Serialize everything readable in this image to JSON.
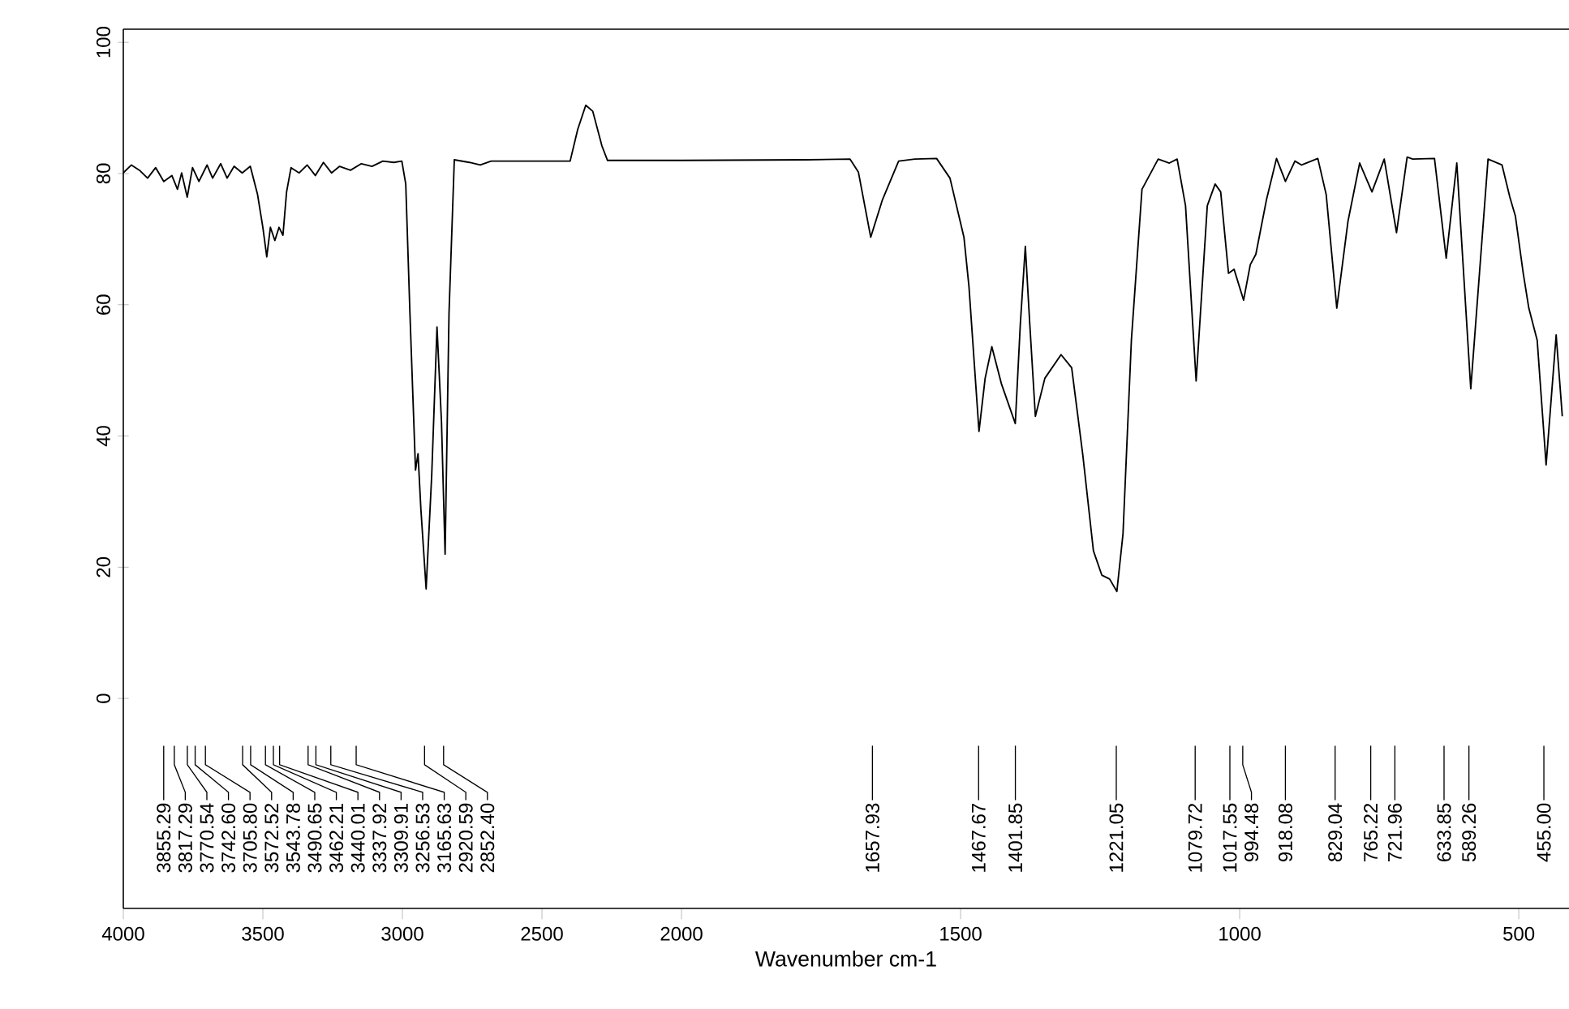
{
  "chart_data": [
    {
      "type": "line",
      "xlim": [
        4000,
        2000
      ],
      "ylim": [
        -32,
        102
      ],
      "xticks": [
        4000,
        3500,
        3000,
        2500,
        2000
      ],
      "yticks": [
        0,
        20,
        40,
        60,
        80,
        100
      ],
      "series": [
        {
          "color": "#000000",
          "x": [
            4000,
            3971,
            3942,
            3913,
            3884,
            3855,
            3826,
            3806,
            3791,
            3771,
            3752,
            3729,
            3700,
            3680,
            3651,
            3628,
            3603,
            3574,
            3545,
            3519,
            3500,
            3486,
            3473,
            3457,
            3442,
            3428,
            3415,
            3399,
            3370,
            3341,
            3312,
            3283,
            3254,
            3225,
            3186,
            3147,
            3109,
            3070,
            3031,
            3002,
            2988,
            2973,
            2953,
            2944,
            2934,
            2915,
            2895,
            2876,
            2860,
            2847,
            2833,
            2814,
            2760,
            2721,
            2682,
            2547,
            2399,
            2372,
            2343,
            2318,
            2285,
            2265,
            2140,
            2000
          ],
          "values": [
            80.1,
            81.3,
            80.5,
            79.3,
            80.9,
            78.8,
            79.7,
            77.6,
            80.1,
            76.4,
            80.9,
            78.8,
            81.3,
            79.3,
            81.5,
            79.3,
            81.1,
            80.1,
            81.1,
            76.8,
            71.8,
            67.3,
            71.8,
            69.8,
            71.8,
            70.6,
            77.2,
            80.9,
            80.1,
            81.3,
            79.7,
            81.7,
            80.1,
            81.1,
            80.5,
            81.5,
            81.1,
            81.9,
            81.7,
            81.9,
            78.4,
            58.7,
            34.8,
            37.3,
            29.0,
            16.7,
            34.0,
            56.6,
            42.2,
            22.0,
            58.7,
            82.1,
            81.7,
            81.3,
            81.9,
            81.9,
            81.9,
            86.7,
            90.4,
            89.5,
            84.2,
            82.0,
            82.0,
            82.0
          ]
        }
      ],
      "annotations": [
        "3855.29",
        "3817.29",
        "3770.54",
        "3742.60",
        "3705.80",
        "3572.52",
        "3543.78",
        "3490.65",
        "3462.21",
        "3440.01",
        "3337.92",
        "3309.91",
        "3256.53",
        "3165.63",
        "2920.59",
        "2852.40"
      ]
    },
    {
      "type": "line",
      "xlabel": "Wavenumber cm-1",
      "tick_labels": "x",
      "xlim": [
        2000,
        410
      ],
      "ylim": [
        -32,
        102
      ],
      "xticks": [
        1500,
        1000,
        500
      ],
      "series": [
        {
          "color": "#000000",
          "x": [
            2000,
            1775,
            1698,
            1683,
            1661,
            1640,
            1611,
            1582,
            1543,
            1519,
            1494,
            1485,
            1467,
            1456,
            1444,
            1427,
            1402,
            1393,
            1384,
            1376,
            1366,
            1349,
            1320,
            1301,
            1281,
            1262,
            1247,
            1233,
            1220,
            1209,
            1194,
            1175,
            1146,
            1126,
            1112,
            1097,
            1078,
            1058,
            1044,
            1034,
            1020,
            1010,
            993,
            981,
            971,
            952,
            934,
            918,
            901,
            889,
            860,
            845,
            826,
            806,
            785,
            763,
            741,
            719,
            700,
            690,
            651,
            630,
            611,
            586,
            555,
            530,
            516,
            506,
            492,
            482,
            467,
            451,
            433,
            422
          ],
          "values": [
            82.0,
            82.1,
            82.2,
            80.2,
            70.3,
            76.0,
            81.9,
            82.2,
            82.3,
            79.3,
            70.3,
            62.8,
            40.7,
            48.8,
            53.6,
            48.0,
            41.9,
            57.0,
            68.9,
            57.0,
            43.0,
            48.8,
            52.4,
            50.4,
            37.1,
            22.5,
            18.8,
            18.2,
            16.3,
            25.1,
            54.6,
            77.6,
            82.2,
            81.6,
            82.2,
            75.1,
            48.4,
            75.1,
            78.4,
            77.2,
            64.8,
            65.4,
            60.7,
            66.1,
            67.7,
            76.0,
            82.3,
            78.8,
            81.9,
            81.3,
            82.3,
            76.8,
            59.5,
            72.7,
            81.6,
            77.2,
            82.2,
            71.0,
            82.5,
            82.2,
            82.3,
            67.1,
            81.6,
            47.2,
            82.2,
            81.3,
            76.4,
            73.5,
            64.8,
            59.5,
            54.6,
            35.6,
            55.4,
            43.0
          ]
        }
      ],
      "annotations": [
        "1657.93",
        "1467.67",
        "1401.85",
        "1221.05",
        "1079.72",
        "1017.55",
        "994.48",
        "918.08",
        "829.04",
        "765.22",
        "721.96",
        "633.85",
        "589.26",
        "455.00"
      ]
    }
  ]
}
